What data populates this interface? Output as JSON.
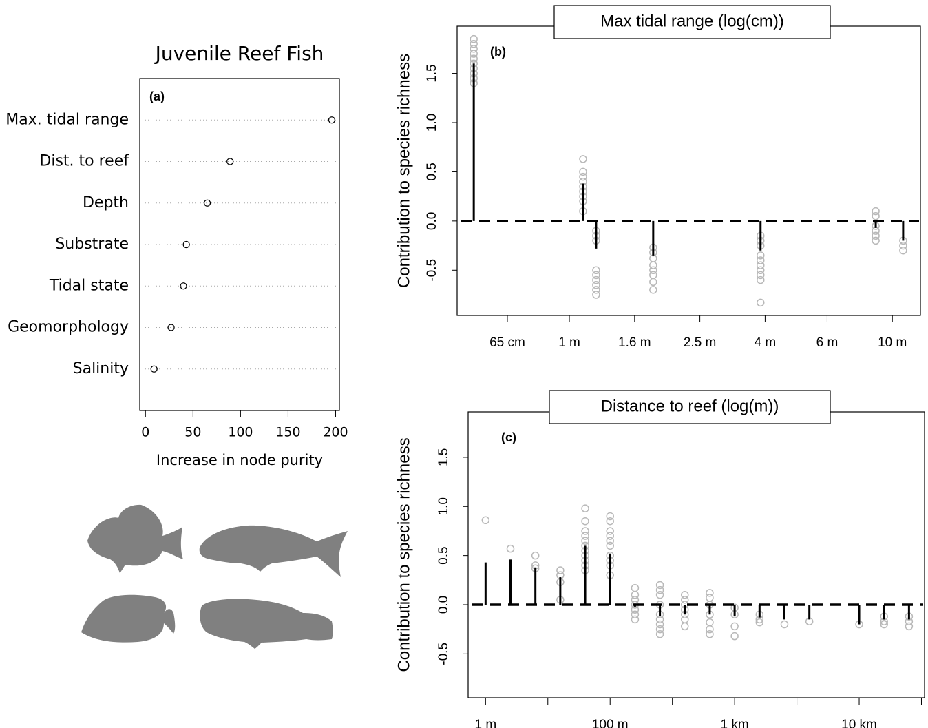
{
  "chart_data": [
    {
      "type": "dot",
      "title": "Juvenile Reef Fish",
      "panel": "(a)",
      "categories": [
        "Max. tidal range",
        "Dist. to reef",
        "Depth",
        "Substrate",
        "Tidal state",
        "Geomorphology",
        "Salinity"
      ],
      "values": [
        196,
        89,
        65,
        43,
        40,
        27,
        9
      ],
      "xlabel": "Increase in node purity",
      "xlim": [
        -6,
        204
      ],
      "xticks": [
        0,
        50,
        100,
        150,
        200
      ]
    },
    {
      "type": "strip",
      "title": "Max tidal range (log(cm))",
      "panel": "(b)",
      "ylabel": "Contribution to species richness",
      "xlim": [
        1.656,
        3.076
      ],
      "xticks": [
        {
          "value": 1.81,
          "label": "65 cm"
        },
        {
          "value": 2.0,
          "label": "1 m"
        },
        {
          "value": 2.2,
          "label": "1.6 m"
        },
        {
          "value": 2.4,
          "label": "2.5 m"
        },
        {
          "value": 2.6,
          "label": "4 m"
        },
        {
          "value": 2.79,
          "label": "6 m"
        },
        {
          "value": 2.99,
          "label": "10 m"
        }
      ],
      "ylim": [
        -0.96,
        1.98
      ],
      "yticks": [
        -0.5,
        {
          "value": 0,
          "label": "0.0"
        },
        0.5,
        {
          "value": 1,
          "label": "1.0"
        },
        1.5
      ],
      "bars": {
        "x": [
          1.707,
          2.042,
          2.082,
          2.257,
          2.586,
          2.939,
          3.023
        ],
        "values": [
          1.6,
          0.38,
          -0.28,
          -0.35,
          -0.3,
          -0.07,
          -0.2
        ]
      },
      "points": {
        "x": [
          1.707,
          1.707,
          1.707,
          1.707,
          1.707,
          1.707,
          1.707,
          1.707,
          1.707,
          1.707,
          2.042,
          2.042,
          2.042,
          2.042,
          2.042,
          2.042,
          2.042,
          2.042,
          2.042,
          2.082,
          2.082,
          2.082,
          2.082,
          2.082,
          2.082,
          2.082,
          2.082,
          2.082,
          2.257,
          2.257,
          2.257,
          2.257,
          2.257,
          2.257,
          2.257,
          2.257,
          2.586,
          2.586,
          2.586,
          2.586,
          2.586,
          2.586,
          2.586,
          2.586,
          2.586,
          2.586,
          2.939,
          2.939,
          2.939,
          2.939,
          2.939,
          2.939,
          3.023,
          3.023,
          3.023
        ],
        "y": [
          1.85,
          1.8,
          1.75,
          1.7,
          1.65,
          1.6,
          1.55,
          1.5,
          1.45,
          1.4,
          0.63,
          0.5,
          0.45,
          0.4,
          0.35,
          0.3,
          0.25,
          0.2,
          0.1,
          -0.1,
          -0.15,
          -0.2,
          -0.5,
          -0.55,
          -0.6,
          -0.65,
          -0.7,
          -0.75,
          -0.27,
          -0.32,
          -0.38,
          -0.45,
          -0.5,
          -0.55,
          -0.62,
          -0.7,
          -0.15,
          -0.2,
          -0.25,
          -0.35,
          -0.4,
          -0.45,
          -0.5,
          -0.55,
          -0.6,
          -0.83,
          0.1,
          0.05,
          -0.05,
          -0.1,
          -0.15,
          -0.2,
          -0.2,
          -0.25,
          -0.3
        ]
      }
    },
    {
      "type": "strip",
      "title": "Distance to reef (log(m))",
      "panel": "(c)",
      "ylabel": "Contribution to species richness",
      "xlim": [
        -0.28,
        7.05
      ],
      "xticks": [
        {
          "value": 0,
          "label": "1 m"
        },
        {
          "value": 2,
          "label": "100 m"
        },
        {
          "value": 4,
          "label": "1 km"
        },
        {
          "value": 6,
          "label": "10 km"
        }
      ],
      "xminorticks": [
        1,
        3,
        5,
        7
      ],
      "ylim": [
        -0.946,
        1.962
      ],
      "yticks": [
        -0.5,
        {
          "value": 0,
          "label": "0.0"
        },
        0.5,
        {
          "value": 1,
          "label": "1.0"
        },
        1.5
      ],
      "bars": {
        "x": [
          0,
          0.4,
          0.8,
          1.2,
          1.6,
          2.0,
          2.4,
          2.8,
          3.2,
          3.6,
          4.0,
          4.4,
          4.8,
          5.2,
          6.0,
          6.4,
          6.8
        ],
        "values": [
          0.43,
          0.46,
          0.38,
          0.28,
          0.6,
          0.52,
          -0.02,
          -0.12,
          -0.1,
          -0.1,
          -0.12,
          -0.13,
          -0.15,
          -0.15,
          -0.2,
          -0.15,
          -0.15
        ]
      },
      "points": {
        "x": [
          0,
          0.4,
          0.8,
          0.8,
          0.8,
          1.2,
          1.2,
          1.2,
          1.2,
          1.6,
          1.6,
          1.6,
          1.6,
          1.6,
          1.6,
          1.6,
          1.6,
          1.6,
          1.6,
          1.6,
          2.0,
          2.0,
          2.0,
          2.0,
          2.0,
          2.0,
          2.0,
          2.0,
          2.0,
          2.0,
          2.4,
          2.4,
          2.4,
          2.4,
          2.4,
          2.4,
          2.4,
          2.8,
          2.8,
          2.8,
          2.8,
          2.8,
          2.8,
          2.8,
          2.8,
          2.8,
          3.2,
          3.2,
          3.2,
          3.2,
          3.2,
          3.2,
          3.2,
          3.6,
          3.6,
          3.6,
          3.6,
          3.6,
          3.6,
          3.6,
          4.0,
          4.0,
          4.0,
          4.0,
          4.4,
          4.4,
          4.4,
          4.8,
          5.2,
          6.0,
          6.4,
          6.4,
          6.4,
          6.8,
          6.8,
          6.8
        ],
        "y": [
          0.86,
          0.57,
          0.5,
          0.4,
          0.37,
          0.35,
          0.3,
          0.23,
          0.05,
          0.98,
          0.85,
          0.75,
          0.7,
          0.65,
          0.6,
          0.55,
          0.5,
          0.45,
          0.4,
          0.35,
          0.9,
          0.85,
          0.75,
          0.7,
          0.65,
          0.6,
          0.5,
          0.45,
          0.4,
          0.3,
          0.17,
          0.1,
          0.05,
          0,
          -0.05,
          -0.1,
          -0.15,
          0.2,
          0.15,
          0.1,
          0,
          -0.1,
          -0.15,
          -0.2,
          -0.25,
          -0.3,
          0.1,
          0.05,
          0,
          -0.05,
          -0.1,
          -0.15,
          -0.22,
          0.12,
          0.07,
          0,
          -0.1,
          -0.18,
          -0.25,
          -0.3,
          -0.03,
          -0.1,
          -0.22,
          -0.32,
          -0.1,
          -0.15,
          -0.18,
          -0.2,
          -0.17,
          -0.2,
          -0.12,
          -0.17,
          -0.2,
          -0.12,
          -0.17,
          -0.22
        ]
      }
    }
  ]
}
